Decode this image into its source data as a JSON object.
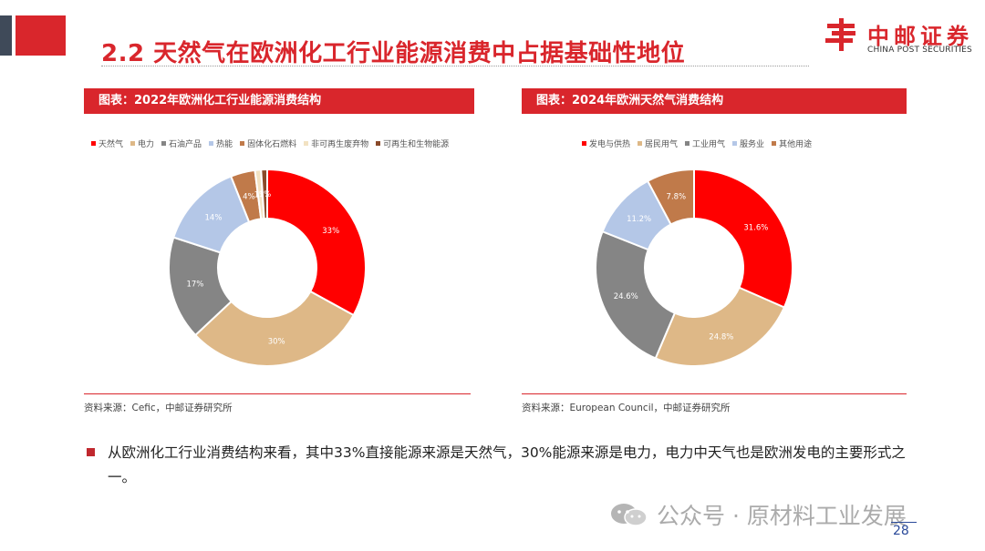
{
  "header": {
    "title": "2.2 天然气在欧洲化工行业能源消费中占据基础性地位",
    "logo_cn": "中邮证券",
    "logo_en": "CHINA POST SECURITIES"
  },
  "chart_data": [
    {
      "type": "pie",
      "title": "图表：2022年欧洲化工行业能源消费结构",
      "labels": [
        "天然气",
        "电力",
        "石油产品",
        "热能",
        "固体化石燃料",
        "非可再生废弃物",
        "可再生和生物能源"
      ],
      "values": [
        33,
        30,
        17,
        14,
        4,
        1,
        1
      ],
      "data_labels": [
        "33%",
        "30%",
        "17%",
        "14%",
        "4%",
        "1%",
        "1%"
      ],
      "colors": [
        "#ff0000",
        "#deb887",
        "#858585",
        "#b4c7e7",
        "#c07a4a",
        "#f2e2c2",
        "#8a4a2a"
      ],
      "legend_position": "top",
      "source": "资料来源：Cefic，中邮证券研究所"
    },
    {
      "type": "pie",
      "title": "图表：2024年欧洲天然气消费结构",
      "labels": [
        "发电与供热",
        "居民用气",
        "工业用气",
        "服务业",
        "其他用途"
      ],
      "values": [
        31.6,
        24.8,
        24.6,
        11.2,
        7.8
      ],
      "data_labels": [
        "31.6%",
        "24.8%",
        "24.6%",
        "11.2%",
        "7.8%"
      ],
      "colors": [
        "#ff0000",
        "#deb887",
        "#858585",
        "#b4c7e7",
        "#c07a4a"
      ],
      "legend_position": "top",
      "source": "资料来源：European Council，中邮证券研究所"
    }
  ],
  "bullet": "从欧洲化工行业消费结构来看，其中33%直接能源来源是天然气，30%能源来源是电力，电力中天气也是欧洲发电的主要形式之一。",
  "watermark": "公众号 · 原材料工业发展",
  "page_number": "28"
}
